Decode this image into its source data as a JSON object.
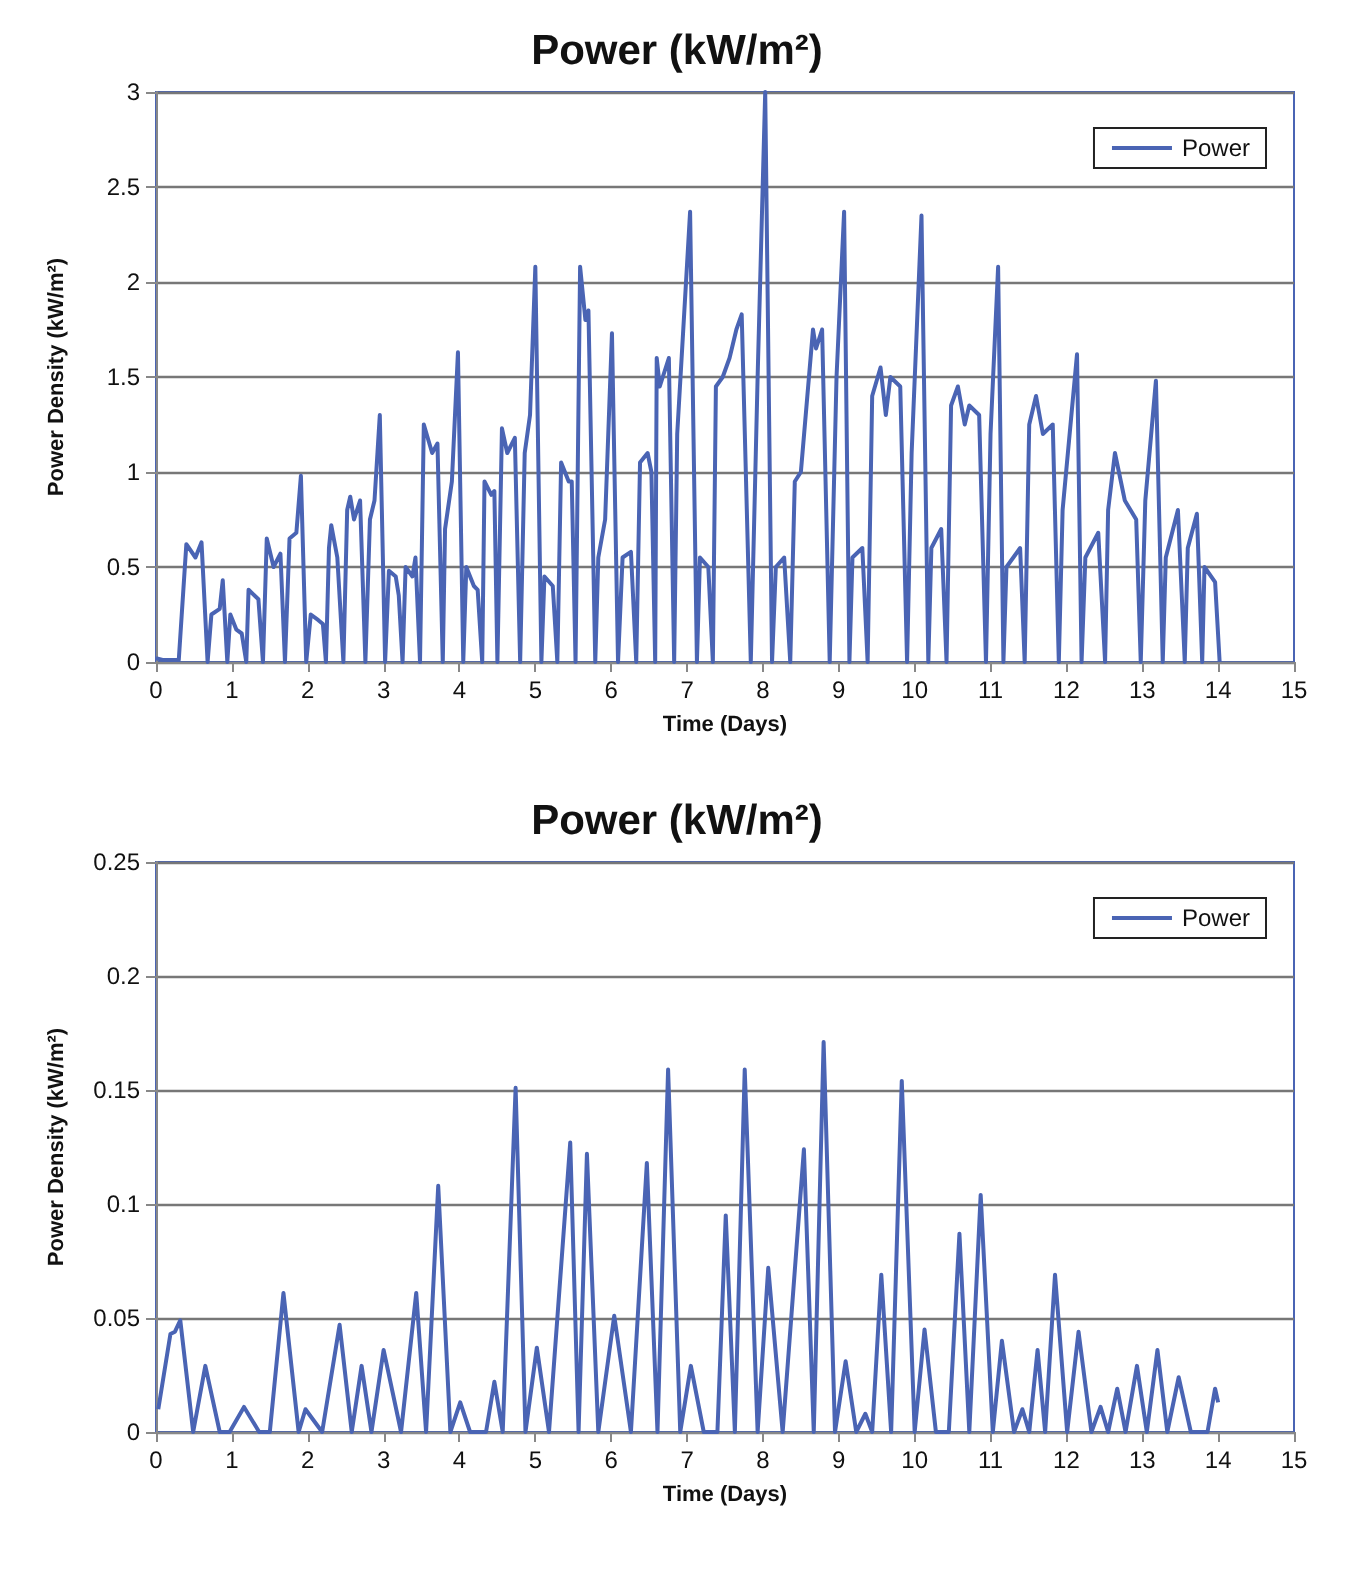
{
  "chart_data": [
    {
      "type": "line",
      "title": "Power (kW/m²)",
      "xlabel": "Time (Days)",
      "ylabel": "Power Density (kW/m²)",
      "xlim": [
        0,
        15
      ],
      "xticks": [
        0,
        1,
        2,
        3,
        4,
        5,
        6,
        7,
        8,
        9,
        10,
        11,
        12,
        13,
        14,
        15
      ],
      "ylim": [
        0,
        3
      ],
      "yticks": [
        0,
        0.5,
        1,
        1.5,
        2,
        2.5,
        3
      ],
      "grid": "y",
      "legend": "top right",
      "marker": "none",
      "series": [
        {
          "name": "Power",
          "color": "#4a64b4",
          "x": [
            0,
            0.1,
            0.3,
            0.4,
            0.52,
            0.6,
            0.68,
            0.73,
            0.84,
            0.88,
            0.94,
            0.98,
            1.06,
            1.13,
            1.19,
            1.22,
            1.35,
            1.41,
            1.46,
            1.55,
            1.64,
            1.7,
            1.76,
            1.85,
            1.91,
            1.98,
            2.04,
            2.14,
            2.2,
            2.24,
            2.28,
            2.31,
            2.39,
            2.47,
            2.52,
            2.56,
            2.61,
            2.69,
            2.76,
            2.82,
            2.88,
            2.95,
            3.02,
            3.07,
            3.16,
            3.2,
            3.25,
            3.29,
            3.38,
            3.42,
            3.48,
            3.53,
            3.64,
            3.71,
            3.78,
            3.81,
            3.9,
            3.98,
            4.05,
            4.09,
            4.19,
            4.24,
            4.3,
            4.33,
            4.42,
            4.46,
            4.5,
            4.56,
            4.63,
            4.73,
            4.8,
            4.86,
            4.93,
            5.0,
            5.08,
            5.12,
            5.23,
            5.29,
            5.34,
            5.44,
            5.48,
            5.53,
            5.59,
            5.66,
            5.7,
            5.79,
            5.83,
            5.92,
            6.01,
            6.09,
            6.15,
            6.26,
            6.33,
            6.38,
            6.48,
            6.53,
            6.58,
            6.6,
            6.64,
            6.76,
            6.83,
            6.87,
            7.04,
            7.13,
            7.17,
            7.28,
            7.34,
            7.38,
            7.47,
            7.56,
            7.65,
            7.72,
            7.84,
            7.93,
            8.03,
            8.12,
            8.17,
            8.28,
            8.36,
            8.42,
            8.5,
            8.66,
            8.7,
            8.78,
            8.88,
            8.97,
            9.07,
            9.14,
            9.18,
            9.31,
            9.38,
            9.44,
            9.55,
            9.62,
            9.68,
            9.81,
            9.9,
            9.96,
            10.09,
            10.18,
            10.22,
            10.35,
            10.42,
            10.48,
            10.57,
            10.66,
            10.72,
            10.85,
            10.94,
            11.0,
            11.1,
            11.17,
            11.21,
            11.39,
            11.45,
            11.51,
            11.6,
            11.69,
            11.82,
            11.9,
            11.95,
            12.14,
            12.2,
            12.25,
            12.42,
            12.51,
            12.55,
            12.64,
            12.77,
            12.92,
            12.98,
            13.04,
            13.18,
            13.27,
            13.31,
            13.47,
            13.56,
            13.6,
            13.72,
            13.79,
            13.82,
            13.96,
            14.02
          ],
          "values": [
            0.02,
            0.01,
            0.01,
            0.62,
            0.55,
            0.63,
            0,
            0.25,
            0.28,
            0.43,
            0,
            0.25,
            0.17,
            0.15,
            0,
            0.38,
            0.33,
            0,
            0.65,
            0.5,
            0.57,
            0,
            0.65,
            0.68,
            0.98,
            0,
            0.25,
            0.22,
            0.2,
            0,
            0.6,
            0.72,
            0.55,
            0,
            0.8,
            0.87,
            0.75,
            0.85,
            0,
            0.75,
            0.85,
            1.3,
            0,
            0.48,
            0.45,
            0.35,
            0,
            0.5,
            0.45,
            0.55,
            0,
            1.25,
            1.1,
            1.15,
            0,
            0.7,
            0.95,
            1.63,
            0,
            0.5,
            0.4,
            0.38,
            0,
            0.95,
            0.88,
            0.9,
            0,
            1.23,
            1.1,
            1.18,
            0,
            1.1,
            1.3,
            2.08,
            0,
            0.45,
            0.4,
            0,
            1.05,
            0.95,
            0.95,
            0,
            2.08,
            1.8,
            1.85,
            0,
            0.55,
            0.75,
            1.73,
            0,
            0.55,
            0.58,
            0,
            1.05,
            1.1,
            1.0,
            0,
            1.6,
            1.45,
            1.6,
            0,
            1.2,
            2.37,
            0,
            0.55,
            0.5,
            0,
            1.45,
            1.5,
            1.6,
            1.75,
            1.83,
            0,
            1.5,
            3.0,
            0,
            0.5,
            0.55,
            0,
            0.95,
            1.0,
            1.75,
            1.65,
            1.75,
            0,
            1.5,
            2.37,
            0,
            0.55,
            0.6,
            0,
            1.4,
            1.55,
            1.3,
            1.5,
            1.45,
            0,
            1.1,
            2.35,
            0,
            0.6,
            0.7,
            0,
            1.35,
            1.45,
            1.25,
            1.35,
            1.3,
            0,
            1.2,
            2.08,
            0,
            0.5,
            0.6,
            0,
            1.25,
            1.4,
            1.2,
            1.25,
            0,
            0.8,
            1.62,
            0,
            0.55,
            0.68,
            0,
            0.8,
            1.1,
            0.85,
            0.75,
            0,
            0.85,
            1.48,
            0,
            0.55,
            0.8,
            0,
            0.6,
            0.78,
            0,
            0.5,
            0.42,
            0
          ]
        }
      ]
    },
    {
      "type": "line",
      "title": "Power (kW/m²)",
      "xlabel": "Time (Days)",
      "ylabel": "Power Density (kW/m²)",
      "xlim": [
        0,
        15
      ],
      "xticks": [
        0,
        1,
        2,
        3,
        4,
        5,
        6,
        7,
        8,
        9,
        10,
        11,
        12,
        13,
        14,
        15
      ],
      "ylim": [
        0,
        0.25
      ],
      "yticks": [
        0,
        0.05,
        0.1,
        0.15,
        0.2,
        0.25
      ],
      "grid": "y",
      "legend": "top right",
      "marker": "none",
      "series": [
        {
          "name": "Power",
          "color": "#4a64b4",
          "x": [
            0.03,
            0.19,
            0.25,
            0.32,
            0.49,
            0.65,
            0.84,
            0.97,
            1.16,
            1.36,
            1.5,
            1.68,
            1.88,
            1.97,
            2.19,
            2.42,
            2.58,
            2.71,
            2.84,
            3.0,
            3.23,
            3.43,
            3.56,
            3.72,
            3.88,
            4.01,
            4.14,
            4.35,
            4.46,
            4.57,
            4.74,
            4.87,
            5.02,
            5.18,
            5.46,
            5.57,
            5.68,
            5.83,
            6.04,
            6.26,
            6.47,
            6.61,
            6.75,
            6.91,
            7.05,
            7.22,
            7.4,
            7.51,
            7.63,
            7.76,
            7.93,
            8.07,
            8.26,
            8.54,
            8.67,
            8.8,
            8.95,
            9.09,
            9.23,
            9.35,
            9.44,
            9.56,
            9.69,
            9.83,
            10.0,
            10.13,
            10.28,
            10.45,
            10.59,
            10.72,
            10.87,
            11.03,
            11.15,
            11.31,
            11.42,
            11.51,
            11.62,
            11.72,
            11.85,
            12.01,
            12.16,
            12.33,
            12.45,
            12.55,
            12.67,
            12.78,
            12.93,
            13.06,
            13.2,
            13.33,
            13.48,
            13.64,
            13.86,
            13.96,
            14.0
          ],
          "values": [
            0.01,
            0.043,
            0.044,
            0.049,
            0,
            0.029,
            0,
            0,
            0.011,
            0,
            0,
            0.061,
            0,
            0.01,
            0,
            0.047,
            0,
            0.029,
            0,
            0.036,
            0,
            0.061,
            0,
            0.108,
            0,
            0.013,
            0,
            0,
            0.022,
            0,
            0.151,
            0,
            0.037,
            0,
            0.127,
            0,
            0.122,
            0,
            0.051,
            0,
            0.118,
            0,
            0.159,
            0,
            0.029,
            0,
            0,
            0.095,
            0,
            0.159,
            0,
            0.072,
            0,
            0.124,
            0,
            0.171,
            0,
            0.031,
            0,
            0.008,
            0,
            0.069,
            0,
            0.154,
            0,
            0.045,
            0,
            0,
            0.087,
            0,
            0.104,
            0,
            0.04,
            0,
            0.01,
            0,
            0.036,
            0,
            0.069,
            0,
            0.044,
            0,
            0.011,
            0,
            0.019,
            0,
            0.029,
            0,
            0.036,
            0,
            0.024,
            0,
            0,
            0.019,
            0.013
          ]
        }
      ]
    }
  ]
}
